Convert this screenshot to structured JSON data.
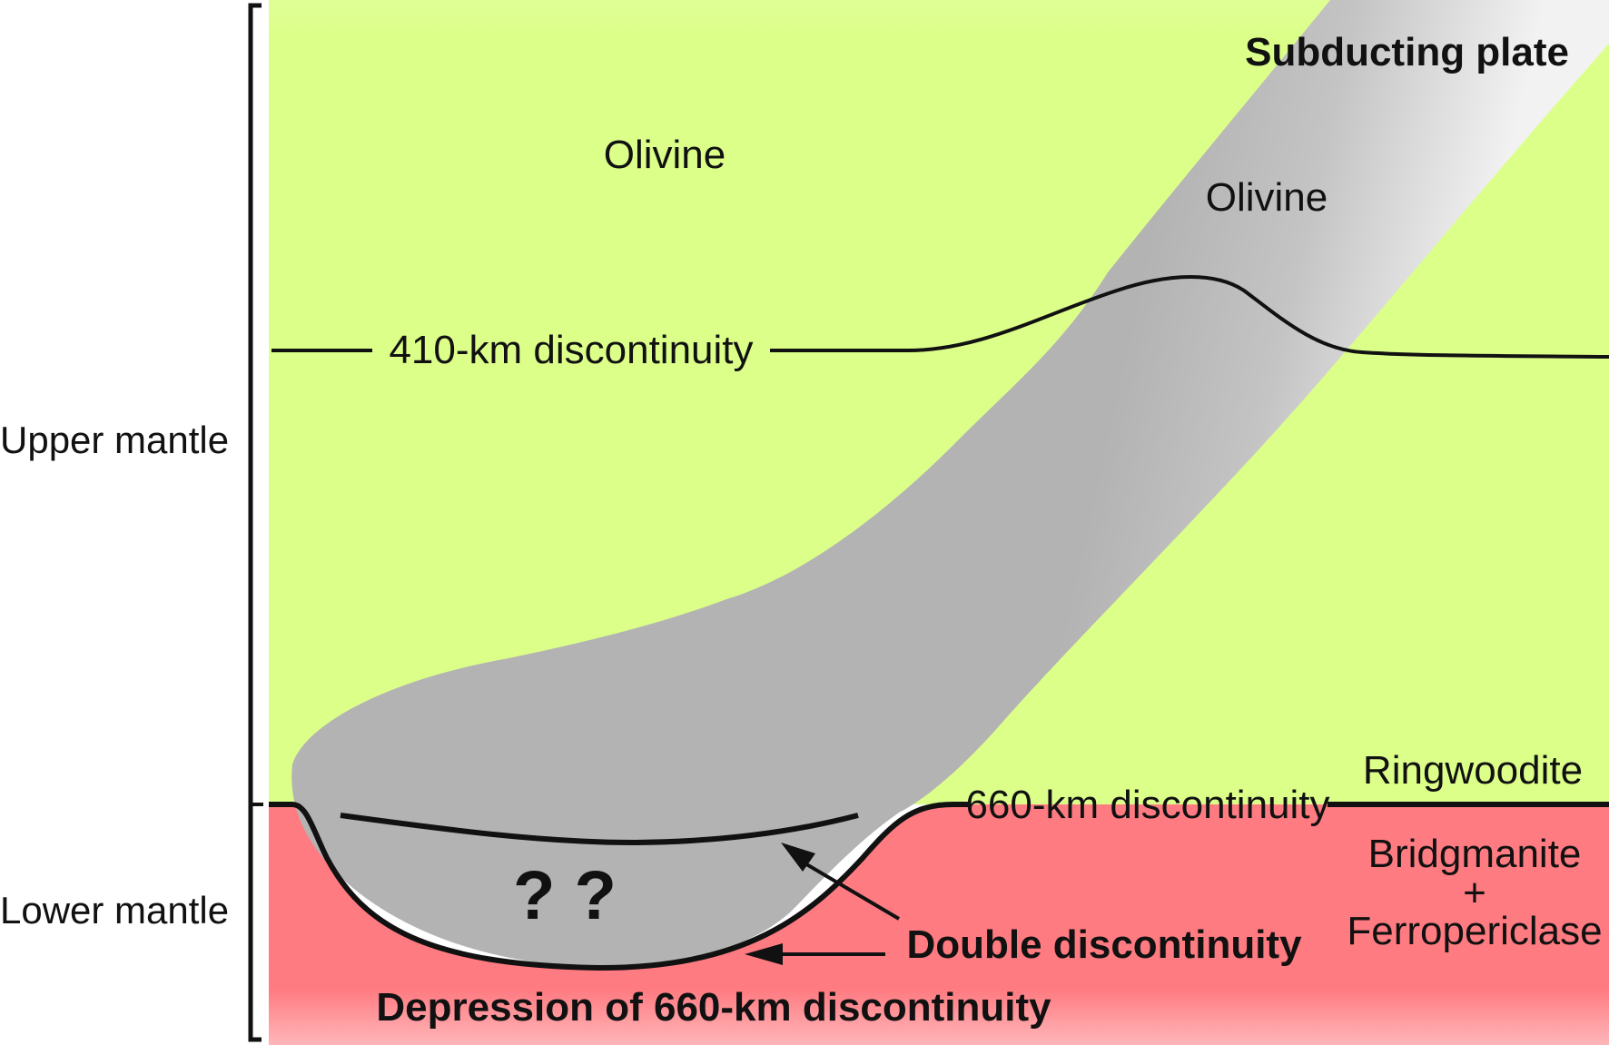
{
  "labels": {
    "subducting_plate": "Subducting plate",
    "olivine_mantle": "Olivine",
    "olivine_slab": "Olivine",
    "disc_410": "410-km discontinuity",
    "disc_660": "660-km discontinuity",
    "ringwoodite": "Ringwoodite",
    "bridgmanite": "Bridgmanite",
    "plus": "+",
    "ferropericlase": "Ferropericlase",
    "question_marks": "? ?",
    "double_discontinuity": "Double discontinuity",
    "depression": "Depression of 660-km discontinuity",
    "upper_mantle": "Upper mantle",
    "lower_mantle": "Lower mantle"
  },
  "colors": {
    "upper_mantle_fill": "#dcff8a",
    "lower_mantle_fill": "#fe7b81",
    "slab_fill": "#b3b3b3",
    "slab_highlight": "#f2f2f2",
    "line": "#111111"
  }
}
